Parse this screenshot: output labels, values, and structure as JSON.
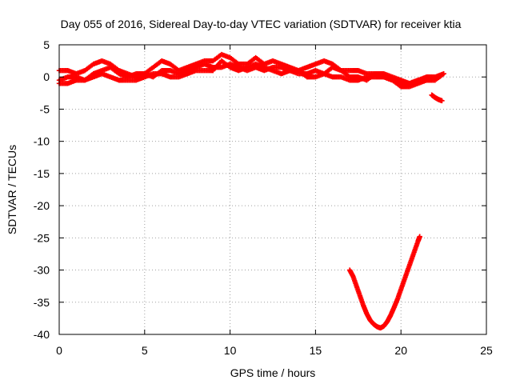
{
  "chart_data": {
    "type": "scatter",
    "title": "Day 055 of 2016, Sidereal Day-to-day VTEC variation (SDTVAR) for receiver ktia",
    "xlabel": "GPS time / hours",
    "ylabel": "SDTVAR / TECUs",
    "xlim": [
      0,
      25
    ],
    "ylim": [
      -40,
      5
    ],
    "xticks": [
      0,
      5,
      10,
      15,
      20,
      25
    ],
    "yticks": [
      5,
      0,
      -5,
      -10,
      -15,
      -20,
      -25,
      -30,
      -35,
      -40
    ],
    "grid": true,
    "marker": "plus",
    "series": [
      {
        "name": "upper band 1",
        "color": "#ff0000",
        "x": [
          0.0,
          0.5,
          1.0,
          1.5,
          2.0,
          2.5,
          3.0,
          3.5,
          4.0,
          4.5,
          5.0,
          5.5,
          6.0,
          6.5,
          7.0,
          7.5,
          8.0,
          8.5,
          9.0,
          9.5,
          10.0,
          10.5,
          11.0,
          11.5,
          12.0,
          12.5,
          13.0,
          13.5,
          14.0,
          14.5,
          15.0,
          15.5,
          16.0,
          16.5,
          17.0,
          17.5,
          18.0,
          18.5,
          19.0,
          19.5,
          20.0,
          20.5,
          21.0
        ],
        "y": [
          1.0,
          1.0,
          0.5,
          1.0,
          2.0,
          2.5,
          2.0,
          1.0,
          0.5,
          0.0,
          0.5,
          1.5,
          2.5,
          2.0,
          1.0,
          1.5,
          2.0,
          2.5,
          2.5,
          3.5,
          3.0,
          2.0,
          2.0,
          3.0,
          2.0,
          2.5,
          2.0,
          1.5,
          1.0,
          1.5,
          2.0,
          2.5,
          2.0,
          1.0,
          1.0,
          1.0,
          0.5,
          0.5,
          0.5,
          0.0,
          -0.5,
          -1.0,
          -0.5
        ]
      },
      {
        "name": "upper band 2",
        "color": "#ff0000",
        "x": [
          0.0,
          0.5,
          1.0,
          1.5,
          2.0,
          2.5,
          3.0,
          3.5,
          4.0,
          4.5,
          5.0,
          5.5,
          6.0,
          6.5,
          7.0,
          7.5,
          8.0,
          8.5,
          9.0,
          9.5,
          10.0,
          10.5,
          11.0,
          11.5,
          12.0,
          12.5,
          13.0,
          13.5,
          14.0,
          14.5,
          15.0,
          15.5,
          16.0,
          16.5,
          17.0,
          17.5,
          18.0,
          18.5,
          19.0,
          19.5,
          20.0,
          20.5,
          21.0,
          21.5,
          22.0,
          22.5
        ],
        "y": [
          -0.5,
          0.0,
          0.0,
          -0.5,
          0.5,
          1.0,
          1.5,
          0.5,
          0.0,
          0.5,
          0.5,
          0.0,
          1.0,
          1.0,
          0.5,
          1.0,
          1.5,
          2.0,
          1.5,
          1.5,
          2.0,
          1.5,
          1.0,
          1.5,
          1.0,
          1.5,
          1.5,
          1.0,
          0.5,
          0.5,
          1.0,
          0.5,
          0.0,
          0.0,
          -0.5,
          -0.5,
          0.0,
          0.0,
          0.0,
          -0.5,
          -1.0,
          -1.0,
          -0.5,
          0.0,
          0.0,
          0.5
        ]
      },
      {
        "name": "upper band 3",
        "color": "#ff0000",
        "x": [
          0.0,
          0.5,
          1.0,
          1.5,
          2.0,
          2.5,
          3.0,
          3.5,
          4.0,
          4.5,
          5.0,
          5.5,
          6.0,
          6.5,
          7.0,
          7.5,
          8.0,
          8.5,
          9.0,
          9.5,
          10.0,
          10.5,
          11.0,
          11.5,
          12.0,
          12.5,
          13.0,
          13.5,
          14.0,
          14.5,
          15.0,
          15.5,
          16.0,
          16.5,
          17.0,
          17.5,
          18.0,
          18.5,
          19.0,
          19.5,
          20.0,
          20.5,
          21.0,
          21.5,
          22.0,
          22.5
        ],
        "y": [
          -1.0,
          -1.0,
          -0.5,
          -0.5,
          0.0,
          0.5,
          0.0,
          -0.5,
          -0.5,
          -0.5,
          0.0,
          0.5,
          0.5,
          0.0,
          0.0,
          0.5,
          1.0,
          1.0,
          1.0,
          2.5,
          1.5,
          1.0,
          1.5,
          2.0,
          1.5,
          1.0,
          0.5,
          1.0,
          1.0,
          0.0,
          0.0,
          0.5,
          1.5,
          1.0,
          0.0,
          0.0,
          -0.5,
          0.5,
          0.0,
          -0.5,
          -1.5,
          -1.5,
          -1.0,
          -0.5,
          -0.5,
          0.5
        ]
      },
      {
        "name": "tail segment",
        "color": "#ff0000",
        "x": [
          21.8,
          22.0,
          22.2,
          22.4
        ],
        "y": [
          -2.8,
          -3.2,
          -3.5,
          -3.7
        ]
      },
      {
        "name": "dip arc",
        "color": "#ff0000",
        "x": [
          17.0,
          17.2,
          17.4,
          17.6,
          17.8,
          18.0,
          18.2,
          18.4,
          18.6,
          18.8,
          19.0,
          19.2,
          19.4,
          19.6,
          19.8,
          20.0,
          20.2,
          20.4,
          20.6,
          20.8,
          21.0,
          21.1
        ],
        "y": [
          -30.0,
          -31.0,
          -32.5,
          -34.0,
          -35.5,
          -36.8,
          -37.8,
          -38.4,
          -38.8,
          -39.0,
          -38.7,
          -38.0,
          -37.0,
          -35.8,
          -34.5,
          -33.0,
          -31.5,
          -30.0,
          -28.5,
          -27.0,
          -25.5,
          -24.8
        ]
      }
    ]
  }
}
